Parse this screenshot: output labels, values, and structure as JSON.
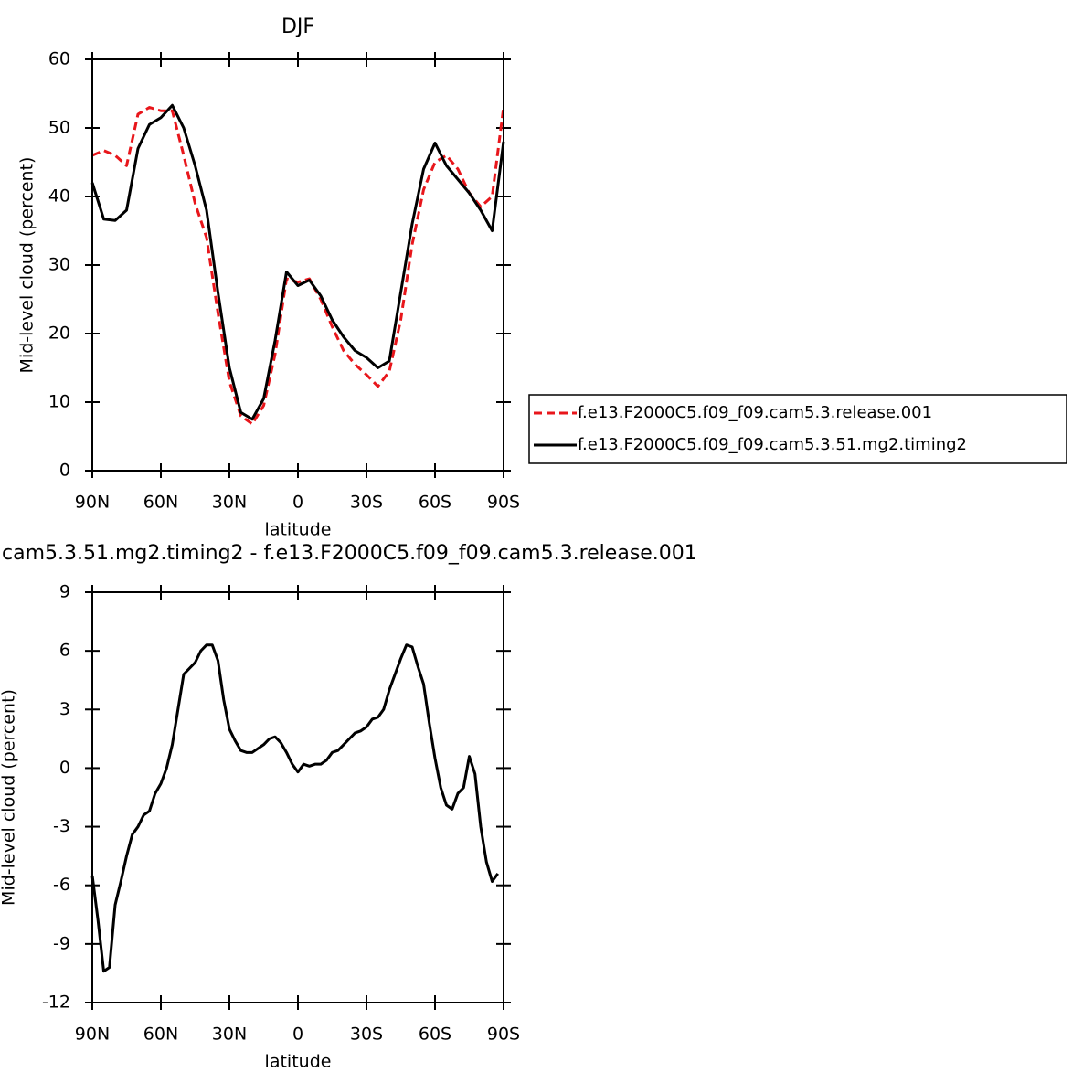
{
  "chart_data": [
    {
      "type": "line",
      "title": "DJF",
      "xlabel": "latitude",
      "ylabel": "Mid-level cloud (percent)",
      "x": [
        90,
        85,
        80,
        75,
        70,
        65,
        60,
        55,
        50,
        45,
        40,
        35,
        30,
        25,
        20,
        15,
        10,
        5,
        0,
        -5,
        -10,
        -15,
        -20,
        -25,
        -30,
        -35,
        -40,
        -45,
        -50,
        -55,
        -60,
        -65,
        -70,
        -75,
        -80,
        -85,
        -90
      ],
      "series": [
        {
          "name": "f.e13.F2000C5.f09_f09.cam5.3.release.001",
          "color": "#e8161b",
          "style": "dashed",
          "values": [
            46,
            46.7,
            46,
            44.5,
            52,
            53,
            52.5,
            52.5,
            46,
            39,
            34,
            23,
            13,
            8,
            6.8,
            9.5,
            17,
            28,
            27.5,
            28,
            25,
            21,
            17.5,
            15.5,
            14,
            12.3,
            14.5,
            22,
            33,
            41,
            45,
            46,
            44,
            40.5,
            38.5,
            40,
            53
          ]
        },
        {
          "name": "f.e13.F2000C5.f09_f09.cam5.3.51.mg2.timing2",
          "color": "#000000",
          "style": "solid",
          "values": [
            42,
            36.7,
            36.5,
            38,
            47,
            50.5,
            51.5,
            53.3,
            50,
            44.5,
            38,
            26,
            15,
            8.5,
            7.5,
            10.5,
            19,
            29,
            27,
            27.8,
            25.5,
            22,
            19.5,
            17.5,
            16.5,
            15,
            16,
            26,
            36,
            44,
            47.8,
            44.5,
            42.5,
            40.5,
            38,
            35,
            48
          ]
        }
      ],
      "xlim": [
        90,
        -90
      ],
      "xticks": [
        {
          "value": 90,
          "label": "90N"
        },
        {
          "value": 60,
          "label": "60N"
        },
        {
          "value": 30,
          "label": "30N"
        },
        0,
        {
          "value": -30,
          "label": "30S"
        },
        {
          "value": -60,
          "label": "60S"
        },
        {
          "value": -90,
          "label": "90S"
        }
      ],
      "ylim": [
        0,
        60
      ],
      "yticks": [
        0,
        10,
        20,
        30,
        40,
        50,
        60
      ]
    },
    {
      "type": "line",
      "title": "cam5.3.51.mg2.timing2 - f.e13.F2000C5.f09_f09.cam5.3.release.001",
      "xlabel": "latitude",
      "ylabel": "Mid-level cloud (percent)",
      "x": [
        90,
        87.5,
        85,
        82.5,
        80,
        77.5,
        75,
        72.5,
        70,
        67.5,
        65,
        62.5,
        60,
        57.5,
        55,
        52.5,
        50,
        47.5,
        45,
        42.5,
        40,
        37.5,
        35,
        32.5,
        30,
        27.5,
        25,
        22.5,
        20,
        17.5,
        15,
        12.5,
        10,
        7.5,
        5,
        2.5,
        0,
        -2.5,
        -5,
        -7.5,
        -10,
        -12.5,
        -15,
        -17.5,
        -20,
        -22.5,
        -25,
        -27.5,
        -30,
        -32.5,
        -35,
        -37.5,
        -40,
        -42.5,
        -45,
        -47.5,
        -50,
        -52.5,
        -55,
        -57.5,
        -60,
        -62.5,
        -65,
        -67.5,
        -70,
        -72.5,
        -75,
        -77.5,
        -80,
        -82.5,
        -85,
        -87.5
      ],
      "series": [
        {
          "color": "#000000",
          "style": "solid",
          "values": [
            -5.5,
            -7.8,
            -10.4,
            -10.2,
            -7,
            -5.8,
            -4.5,
            -3.4,
            -3,
            -2.4,
            -2.2,
            -1.3,
            -0.8,
            0,
            1.2,
            3,
            4.8,
            5.1,
            5.4,
            6,
            6.3,
            6.3,
            5.5,
            3.5,
            2,
            1.4,
            0.9,
            0.8,
            0.8,
            1,
            1.2,
            1.5,
            1.6,
            1.3,
            0.8,
            0.2,
            -0.2,
            0.2,
            0.1,
            0.2,
            0.2,
            0.4,
            0.8,
            0.9,
            1.2,
            1.5,
            1.8,
            1.9,
            2.1,
            2.5,
            2.6,
            3,
            4,
            4.8,
            5.6,
            6.3,
            6.2,
            5.2,
            4.3,
            2.3,
            0.5,
            -1,
            -1.9,
            -2.1,
            -1.3,
            -1,
            0.6,
            -0.3,
            -3,
            -4.8,
            -5.8,
            -5.4
          ]
        }
      ],
      "xlim": [
        90,
        -90
      ],
      "xticks": [
        {
          "value": 90,
          "label": "90N"
        },
        {
          "value": 60,
          "label": "60N"
        },
        {
          "value": 30,
          "label": "30N"
        },
        0,
        {
          "value": -30,
          "label": "30S"
        },
        {
          "value": -60,
          "label": "60S"
        },
        {
          "value": -90,
          "label": "90S"
        }
      ],
      "ylim": [
        -12,
        9
      ],
      "yticks": [
        -12,
        -9,
        -6,
        -3,
        0,
        3,
        6,
        9
      ]
    }
  ]
}
